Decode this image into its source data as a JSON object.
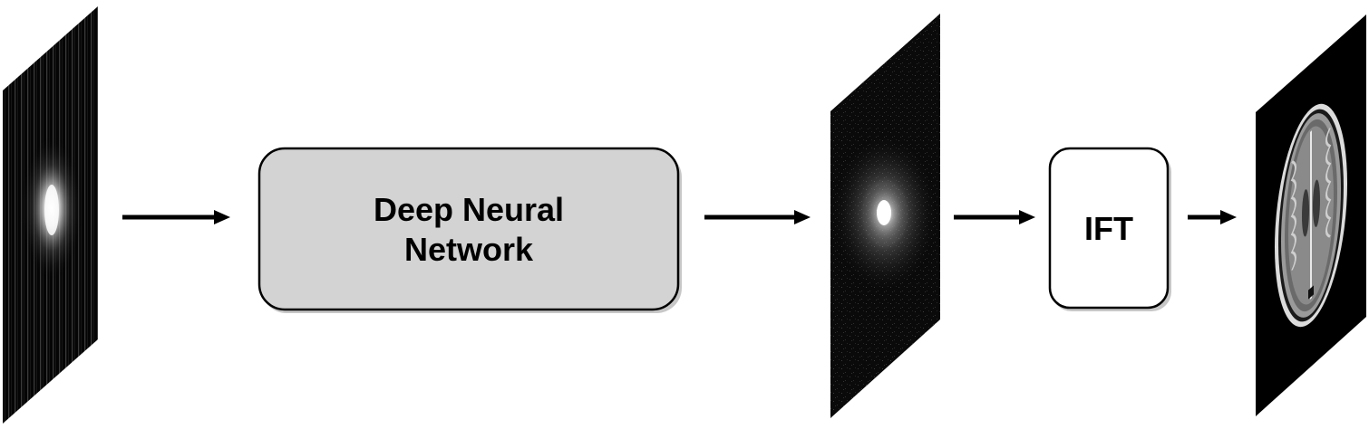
{
  "diagram": {
    "nodes": [
      {
        "id": "undersampled-kspace",
        "kind": "image-plane",
        "label": ""
      },
      {
        "id": "deep-neural-network",
        "kind": "box",
        "label_lines": [
          "Deep Neural",
          "Network"
        ],
        "fill": "#d3d3d3"
      },
      {
        "id": "reconstructed-kspace",
        "kind": "image-plane",
        "label": ""
      },
      {
        "id": "ift",
        "kind": "box",
        "label": "IFT",
        "fill": "#ffffff"
      },
      {
        "id": "mri-image",
        "kind": "image-plane",
        "label": ""
      }
    ],
    "edges": [
      {
        "from": "undersampled-kspace",
        "to": "deep-neural-network"
      },
      {
        "from": "deep-neural-network",
        "to": "reconstructed-kspace"
      },
      {
        "from": "reconstructed-kspace",
        "to": "ift"
      },
      {
        "from": "ift",
        "to": "mri-image"
      }
    ]
  }
}
